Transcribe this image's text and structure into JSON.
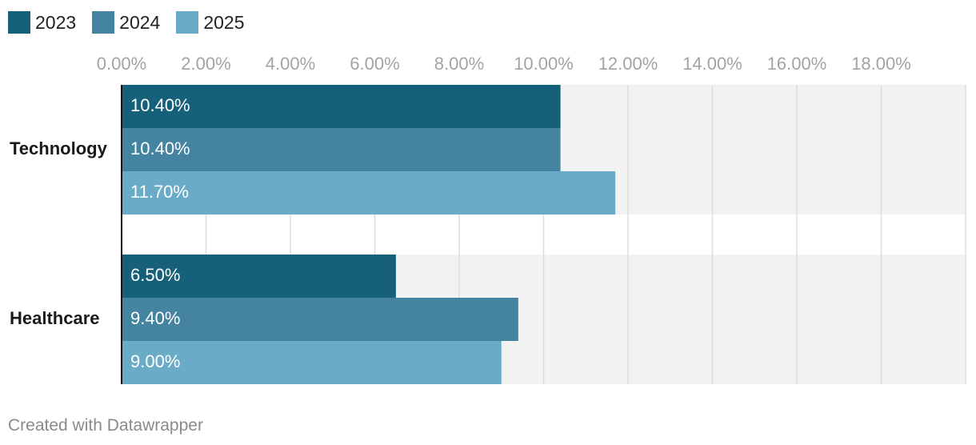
{
  "chart_data": {
    "type": "bar",
    "orientation": "horizontal",
    "categories": [
      "Technology",
      "Healthcare"
    ],
    "series": [
      {
        "name": "2023",
        "color": "#17607a",
        "values": [
          10.4,
          6.5
        ]
      },
      {
        "name": "2024",
        "color": "#4484a0",
        "values": [
          10.4,
          9.4
        ]
      },
      {
        "name": "2025",
        "color": "#6aabc7",
        "values": [
          11.7,
          9.0
        ]
      }
    ],
    "data_labels": [
      [
        "10.40%",
        "10.40%",
        "11.70%"
      ],
      [
        "6.50%",
        "9.40%",
        "9.00%"
      ]
    ],
    "x_ticks": [
      0,
      2,
      4,
      6,
      8,
      10,
      12,
      14,
      16,
      18
    ],
    "x_tick_labels": [
      "0.00%",
      "2.00%",
      "4.00%",
      "6.00%",
      "8.00%",
      "10.00%",
      "12.00%",
      "14.00%",
      "16.00%",
      "18.00%"
    ],
    "xlim": [
      0,
      20
    ],
    "title": "",
    "xlabel": "",
    "ylabel": "",
    "grid": true,
    "legend_position": "top-left"
  },
  "footer": "Created with Datawrapper",
  "colors": {
    "band": "#f2f2f2",
    "grid": "#dddddd",
    "tick_text": "#a3a3a3",
    "category_text": "#1a1a1a",
    "bar_text": "#ffffff"
  }
}
